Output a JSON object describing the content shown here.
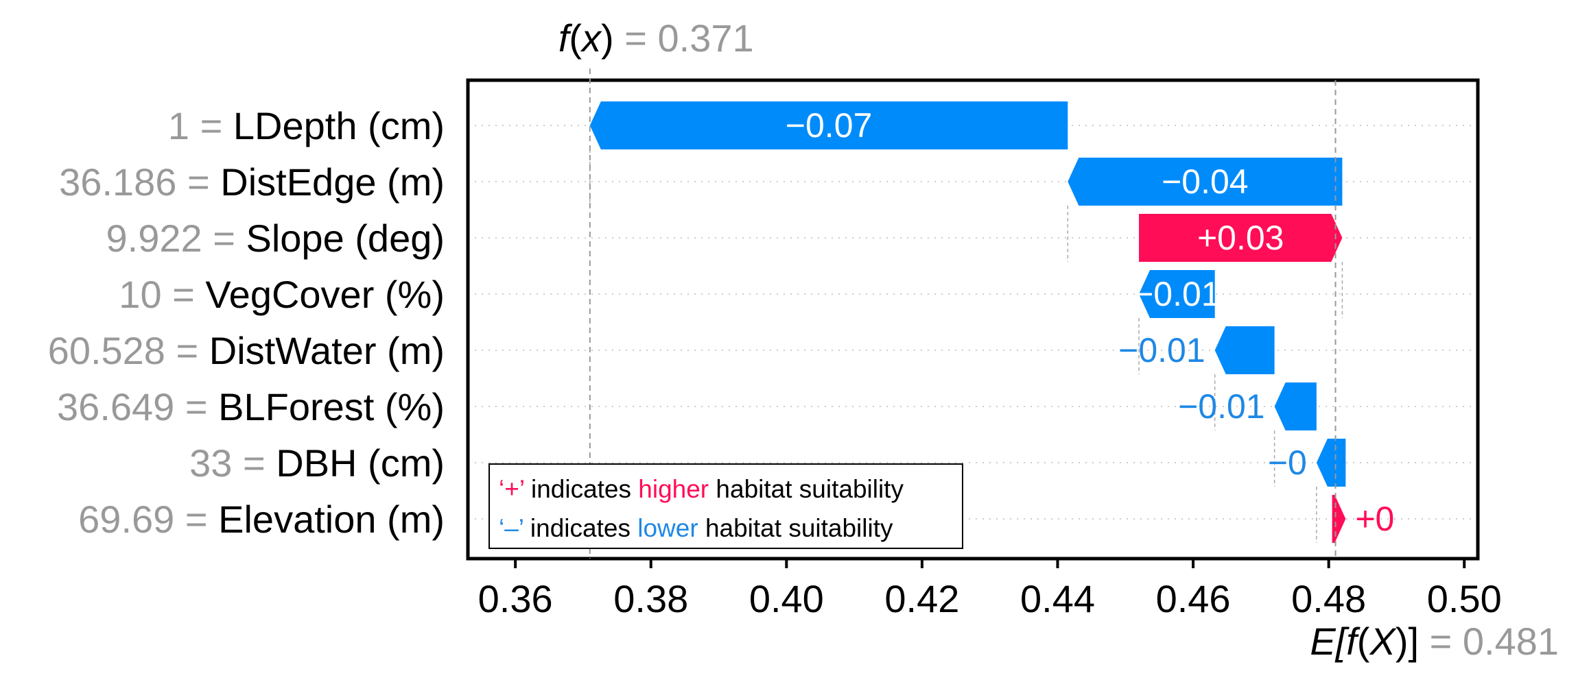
{
  "chart_data": {
    "type": "waterfall",
    "fx": {
      "label_func": "f",
      "label_var": "x",
      "eq": "= ",
      "value": "0.371",
      "numeric": 0.371
    },
    "base": {
      "label_pre": "E[",
      "label_func": "f",
      "label_paren_open": "(",
      "label_var": "X",
      "label_post": ")]",
      "eq": "= ",
      "value": "0.481",
      "numeric": 0.481
    },
    "xlim": [
      0.353,
      0.502
    ],
    "ticks": [
      {
        "value": 0.36,
        "label": "0.36"
      },
      {
        "value": 0.38,
        "label": "0.38"
      },
      {
        "value": 0.4,
        "label": "0.40"
      },
      {
        "value": 0.42,
        "label": "0.42"
      },
      {
        "value": 0.44,
        "label": "0.44"
      },
      {
        "value": 0.46,
        "label": "0.46"
      },
      {
        "value": 0.48,
        "label": "0.48"
      },
      {
        "value": 0.5,
        "label": "0.50"
      }
    ],
    "features": [
      {
        "value": "1",
        "eq": " = ",
        "name": "LDepth (cm)",
        "start": 0.4415,
        "end": 0.371,
        "label": "−0.07",
        "sign": "neg",
        "label_inside": true
      },
      {
        "value": "36.186",
        "eq": " = ",
        "name": "DistEdge (m)",
        "start": 0.482,
        "end": 0.4415,
        "label": "−0.04",
        "sign": "neg",
        "label_inside": true
      },
      {
        "value": "9.922",
        "eq": " = ",
        "name": "Slope (deg)",
        "start": 0.452,
        "end": 0.482,
        "label": "+0.03",
        "sign": "pos",
        "label_inside": true
      },
      {
        "value": "10",
        "eq": " = ",
        "name": "VegCover (%)",
        "start": 0.4632,
        "end": 0.452,
        "label": "−0.01",
        "sign": "neg",
        "label_inside": true
      },
      {
        "value": "60.528",
        "eq": " = ",
        "name": "DistWater (m)",
        "start": 0.472,
        "end": 0.4632,
        "label": "−0.01",
        "sign": "neg",
        "label_inside": false
      },
      {
        "value": "36.649",
        "eq": " = ",
        "name": "BLForest (%)",
        "start": 0.4782,
        "end": 0.472,
        "label": "−0.01",
        "sign": "neg",
        "label_inside": false
      },
      {
        "value": "33",
        "eq": " = ",
        "name": "DBH (cm)",
        "start": 0.4825,
        "end": 0.4782,
        "label": "−0",
        "sign": "neg",
        "label_inside": false
      },
      {
        "value": "69.69",
        "eq": " = ",
        "name": "Elevation (m)",
        "start": 0.4805,
        "end": 0.4825,
        "label": "+0",
        "sign": "pos",
        "label_inside": false
      }
    ],
    "legend": {
      "placement": "bottom-left",
      "rows": [
        {
          "symbol": "‘+’",
          "pre": " indicates ",
          "word": "higher",
          "post": " habitat suitability",
          "sign": "pos"
        },
        {
          "symbol": "‘–’",
          "pre": " indicates ",
          "word": "lower",
          "post": " habitat suitability",
          "sign": "neg"
        }
      ]
    },
    "colors": {
      "pos": "#ff0d57",
      "neg": "#1e88e5",
      "neg_bar": "#008bfb",
      "value_text": "#999999",
      "grid": "#cccccc"
    }
  }
}
